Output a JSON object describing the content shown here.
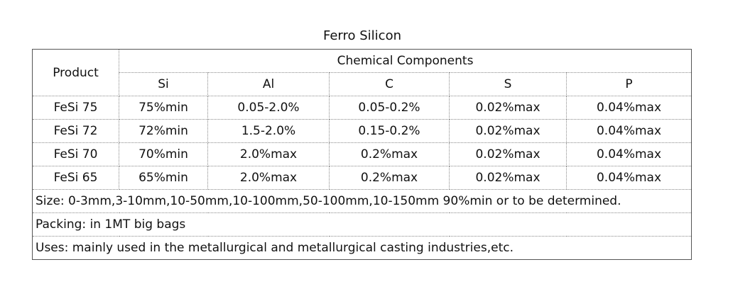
{
  "title": "Ferro Silicon",
  "table": {
    "header": {
      "product": "Product",
      "group": "Chemical Components",
      "columns": [
        "Si",
        "Al",
        "C",
        "S",
        "P"
      ]
    },
    "rows": [
      [
        "FeSi 75",
        "75%min",
        "0.05-2.0%",
        "0.05-0.2%",
        "0.02%max",
        "0.04%max"
      ],
      [
        "FeSi 72",
        "72%min",
        "1.5-2.0%",
        "0.15-0.2%",
        "0.02%max",
        "0.04%max"
      ],
      [
        "FeSi 70",
        "70%min",
        "2.0%max",
        "0.2%max",
        "0.02%max",
        "0.04%max"
      ],
      [
        "FeSi 65",
        "65%min",
        "2.0%max",
        "0.2%max",
        "0.02%max",
        "0.04%max"
      ]
    ],
    "notes": [
      "Size:  0-3mm,3-10mm,10-50mm,10-100mm,50-100mm,10-150mm 90%min or to be determined.",
      "Packing: in 1MT big bags",
      "Uses:  mainly used in the metallurgical and metallurgical casting industries,etc."
    ]
  }
}
